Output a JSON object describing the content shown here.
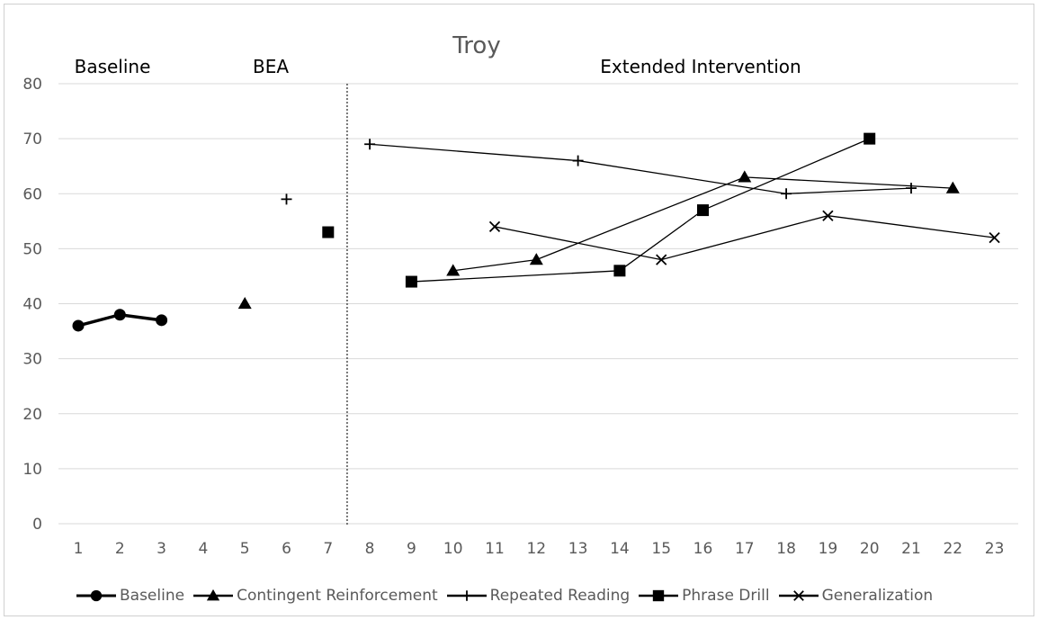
{
  "chart_data": {
    "type": "line",
    "title": "Troy",
    "phases": [
      "Baseline",
      "BEA",
      "Extended Intervention"
    ],
    "x": [
      1,
      2,
      3,
      4,
      5,
      6,
      7,
      8,
      9,
      10,
      11,
      12,
      13,
      14,
      15,
      16,
      17,
      18,
      19,
      20,
      21,
      22,
      23
    ],
    "xlim": [
      1,
      23
    ],
    "ylim": [
      0,
      80
    ],
    "yticks": [
      0,
      10,
      20,
      30,
      40,
      50,
      60,
      70,
      80
    ],
    "grid": true,
    "legend_position": "bottom",
    "phase_change_line_after_x": 7,
    "series": [
      {
        "name": "Baseline",
        "marker": "circle",
        "connected": true,
        "points": [
          [
            1,
            36
          ],
          [
            2,
            38
          ],
          [
            3,
            37
          ]
        ]
      },
      {
        "name": "Contingent Reinforcement",
        "marker": "triangle",
        "connected": true,
        "points": [
          [
            5,
            40
          ],
          [
            10,
            46
          ],
          [
            12,
            48
          ],
          [
            17,
            63
          ],
          [
            22,
            61
          ]
        ]
      },
      {
        "name": "Repeated Reading",
        "marker": "plus",
        "connected": true,
        "points": [
          [
            6,
            59
          ],
          [
            8,
            69
          ],
          [
            13,
            66
          ],
          [
            18,
            60
          ],
          [
            21,
            61
          ]
        ]
      },
      {
        "name": "Phrase Drill",
        "marker": "square",
        "connected": true,
        "points": [
          [
            7,
            53
          ],
          [
            9,
            44
          ],
          [
            14,
            46
          ],
          [
            16,
            57
          ],
          [
            20,
            70
          ]
        ]
      },
      {
        "name": "Generalization",
        "marker": "x",
        "connected": true,
        "points": [
          [
            11,
            54
          ],
          [
            15,
            48
          ],
          [
            19,
            56
          ],
          [
            23,
            52
          ]
        ]
      }
    ],
    "colors": {
      "series": "#000000",
      "axis_text": "#595959",
      "grid": "#d9d9d9",
      "title": "#595959",
      "phase_label": "#000000"
    }
  }
}
